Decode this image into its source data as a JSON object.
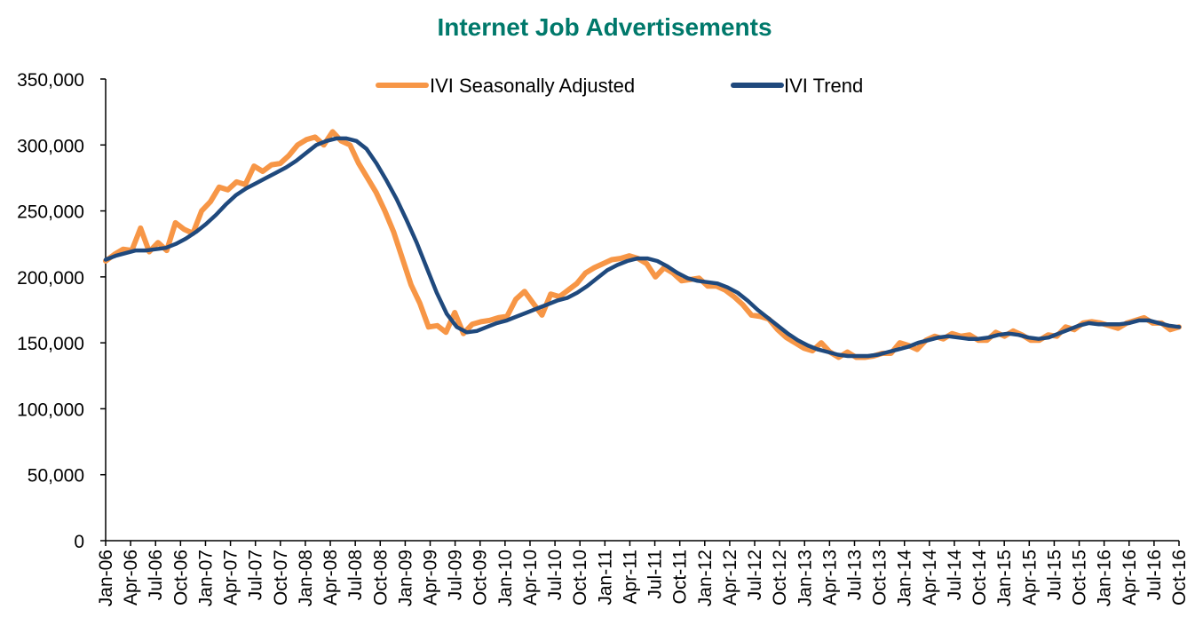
{
  "colors": {
    "title": "#00796B",
    "seasonal": "#F79646",
    "trend": "#1F497D",
    "axis": "#000000"
  },
  "chart_data": {
    "type": "line",
    "title": "Internet Job Advertisements",
    "xlabel": "",
    "ylabel": "",
    "ylim": [
      0,
      350000
    ],
    "yticks": [
      0,
      50000,
      100000,
      150000,
      200000,
      250000,
      300000,
      350000
    ],
    "ytick_labels": [
      "0",
      "50,000",
      "100,000",
      "150,000",
      "200,000",
      "250,000",
      "300,000",
      "350,000"
    ],
    "x_start": "Jan-06",
    "x_tick_labels": [
      "Jan-06",
      "Apr-06",
      "Jul-06",
      "Oct-06",
      "Jan-07",
      "Apr-07",
      "Jul-07",
      "Oct-07",
      "Jan-08",
      "Apr-08",
      "Jul-08",
      "Oct-08",
      "Jan-09",
      "Apr-09",
      "Jul-09",
      "Oct-09",
      "Jan-10",
      "Apr-10",
      "Jul-10",
      "Oct-10",
      "Jan-11",
      "Apr-11",
      "Jul-11",
      "Oct-11",
      "Jan-12",
      "Apr-12",
      "Jul-12",
      "Oct-12",
      "Jan-13",
      "Apr-13",
      "Jul-13",
      "Oct-13",
      "Jan-14",
      "Apr-14",
      "Jul-14",
      "Oct-14",
      "Jan-15",
      "Apr-15",
      "Jul-15",
      "Oct-15",
      "Jan-16",
      "Apr-16",
      "Jul-16",
      "Oct-16"
    ],
    "legend_position": "top-center",
    "series": [
      {
        "name": "IVI Seasonally Adjusted",
        "values": [
          212000,
          217000,
          221000,
          220000,
          237000,
          219000,
          226000,
          220000,
          241000,
          236000,
          233000,
          250000,
          257000,
          268000,
          266000,
          272000,
          270000,
          284000,
          280000,
          285000,
          286000,
          292000,
          300000,
          304000,
          306000,
          300000,
          310000,
          303000,
          300000,
          286000,
          275000,
          264000,
          250000,
          234000,
          214000,
          194000,
          180000,
          162000,
          163000,
          158000,
          173000,
          157000,
          164000,
          166000,
          167000,
          169000,
          170000,
          183000,
          189000,
          180000,
          171000,
          187000,
          185000,
          190000,
          195000,
          203000,
          207000,
          210000,
          213000,
          214000,
          216000,
          214000,
          210000,
          200000,
          207000,
          203000,
          197000,
          198000,
          199000,
          193000,
          193000,
          190000,
          185000,
          179000,
          171000,
          170000,
          168000,
          160000,
          154000,
          150000,
          146000,
          144000,
          150000,
          143000,
          139000,
          143000,
          139000,
          139000,
          140000,
          142000,
          142000,
          150000,
          148000,
          145000,
          152000,
          155000,
          153000,
          157000,
          155000,
          156000,
          152000,
          152000,
          158000,
          155000,
          159000,
          156000,
          152000,
          152000,
          156000,
          155000,
          162000,
          160000,
          165000,
          166000,
          165000,
          163000,
          161000,
          165000,
          167000,
          169000,
          165000,
          165000,
          160000,
          162000
        ],
        "color": "#F79646"
      },
      {
        "name": "IVI Trend",
        "values": [
          213000,
          216000,
          218000,
          220000,
          220000,
          221000,
          222000,
          225000,
          229000,
          234000,
          240000,
          247000,
          255000,
          262000,
          267000,
          271000,
          275000,
          279000,
          283000,
          288000,
          294000,
          300000,
          303000,
          305000,
          305000,
          303000,
          297000,
          286000,
          273000,
          259000,
          243000,
          226000,
          207000,
          188000,
          172000,
          162000,
          158000,
          159000,
          162000,
          165000,
          167000,
          170000,
          173000,
          176000,
          179000,
          182000,
          184000,
          188000,
          193000,
          199000,
          205000,
          209000,
          212000,
          214000,
          214000,
          212000,
          208000,
          203000,
          199000,
          197000,
          196000,
          195000,
          192000,
          188000,
          182000,
          175000,
          169000,
          163000,
          157000,
          152000,
          148000,
          145000,
          143000,
          141000,
          140000,
          140000,
          140000,
          141000,
          143000,
          145000,
          147000,
          150000,
          152000,
          154000,
          155000,
          154000,
          153000,
          153000,
          154000,
          156000,
          157000,
          156000,
          154000,
          153000,
          154000,
          157000,
          160000,
          163000,
          165000,
          164000,
          164000,
          164000,
          165000,
          167000,
          167000,
          165000,
          163000,
          162000
        ],
        "color": "#1F497D"
      }
    ]
  }
}
